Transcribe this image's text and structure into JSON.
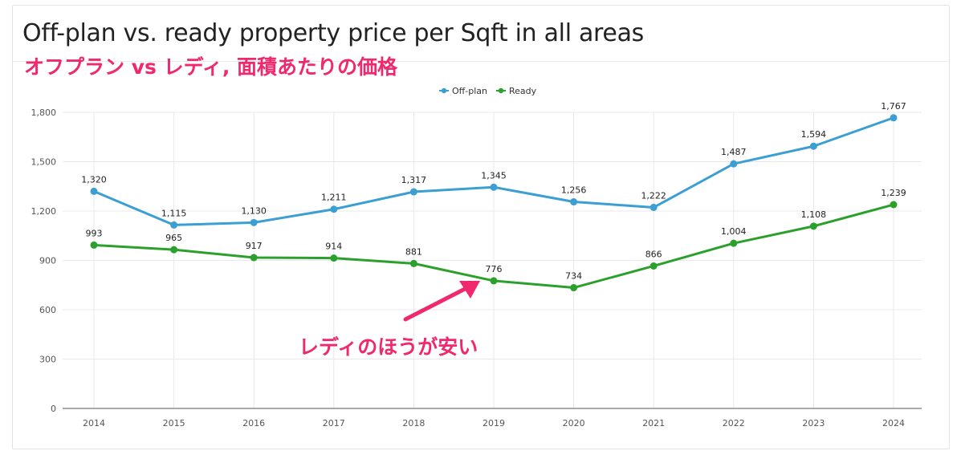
{
  "header": {
    "title": "Off-plan vs. ready property price per Sqft in all areas",
    "subtitle": "オフプラン vs レディ, 面積あたりの価格"
  },
  "annotation": {
    "text": "レディのほうが安い",
    "color": "#f0286e"
  },
  "chart_data": {
    "type": "line",
    "x": [
      "2014",
      "2015",
      "2016",
      "2017",
      "2018",
      "2019",
      "2020",
      "2021",
      "2022",
      "2023",
      "2024"
    ],
    "series": [
      {
        "name": "Off-plan",
        "color": "#3b9fd4",
        "values": [
          1320,
          1115,
          1130,
          1211,
          1317,
          1345,
          1256,
          1222,
          1487,
          1594,
          1767
        ],
        "labels": [
          "1,320",
          "1,115",
          "1,130",
          "1,211",
          "1,317",
          "1,345",
          "1,256",
          "1,222",
          "1,487",
          "1,594",
          "1,767"
        ]
      },
      {
        "name": "Ready",
        "color": "#2ca02c",
        "values": [
          993,
          965,
          917,
          914,
          881,
          776,
          734,
          866,
          1004,
          1108,
          1239
        ],
        "labels": [
          "993",
          "965",
          "917",
          "914",
          "881",
          "776",
          "734",
          "866",
          "1,004",
          "1,108",
          "1,239"
        ]
      }
    ],
    "yticks": [
      0,
      300,
      600,
      900,
      1200,
      1500,
      1800
    ],
    "ytick_labels": [
      "0",
      "300",
      "600",
      "900",
      "1,200",
      "1,500",
      "1,800"
    ],
    "ylim": [
      0,
      1800
    ],
    "grid": true,
    "legend_position": "top-center"
  }
}
